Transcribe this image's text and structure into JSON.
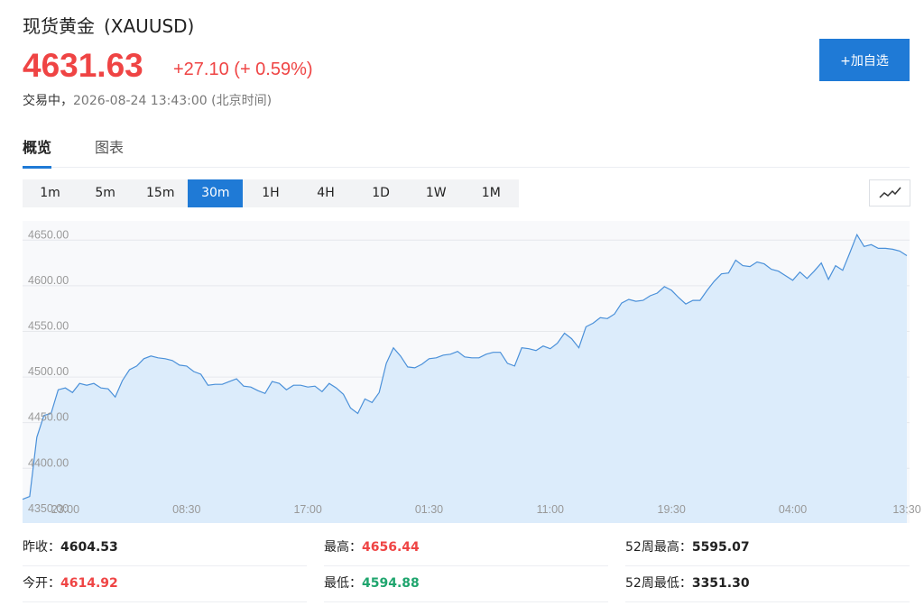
{
  "header": {
    "title": "现货黄金",
    "symbol": "(XAUUSD)",
    "price": "4631.63",
    "change": "+27.10 (+ 0.59%)",
    "status": "交易中，",
    "time": "2026-08-24 13:43:00",
    "timezone": "(北京时间)",
    "button": "+加自选"
  },
  "tabs": {
    "items": [
      "概览",
      "图表"
    ],
    "active": 0
  },
  "timeframes": {
    "items": [
      "1m",
      "5m",
      "15m",
      "30m",
      "1H",
      "4H",
      "1D",
      "1W",
      "1M"
    ],
    "active": 3
  },
  "chart_data": {
    "type": "area",
    "color": "#4a90d9",
    "fill": "#dcecfb",
    "grid": true,
    "categories": [
      null,
      null,
      null,
      null,
      null,
      null,
      "23:00",
      null,
      null,
      null,
      null,
      null,
      null,
      null,
      null,
      null,
      null,
      null,
      null,
      null,
      null,
      null,
      null,
      "08:30",
      null,
      null,
      null,
      null,
      null,
      null,
      null,
      null,
      null,
      null,
      null,
      null,
      null,
      null,
      null,
      null,
      "17:00",
      null,
      null,
      null,
      null,
      null,
      null,
      null,
      null,
      null,
      null,
      null,
      null,
      null,
      null,
      null,
      null,
      "01:30",
      null,
      null,
      null,
      null,
      null,
      null,
      null,
      null,
      null,
      null,
      null,
      null,
      null,
      null,
      null,
      null,
      "11:00",
      null,
      null,
      null,
      null,
      null,
      null,
      null,
      null,
      null,
      null,
      null,
      null,
      null,
      null,
      null,
      null,
      "19:30",
      null,
      null,
      null,
      null,
      null,
      null,
      null,
      null,
      null,
      null,
      null,
      null,
      null,
      null,
      null,
      null,
      "04:00",
      null,
      null,
      null,
      null,
      null,
      null,
      null,
      null,
      null,
      null,
      null,
      null,
      null,
      null,
      null,
      "13:30"
    ],
    "values": [
      4366,
      4369,
      4434,
      4458,
      4460,
      4486,
      4488,
      4483,
      4493,
      4491,
      4493,
      4488,
      4487,
      4478,
      4496,
      4508,
      4512,
      4520,
      4523,
      4521,
      4520,
      4518,
      4513,
      4512,
      4506,
      4503,
      4491,
      4492,
      4492,
      4495,
      4498,
      4490,
      4489,
      4485,
      4482,
      4495,
      4493,
      4486,
      4491,
      4491,
      4489,
      4490,
      4484,
      4493,
      4488,
      4481,
      4466,
      4460,
      4476,
      4472,
      4483,
      4515,
      4532,
      4523,
      4511,
      4510,
      4514,
      4520,
      4521,
      4524,
      4525,
      4528,
      4522,
      4521,
      4521,
      4525,
      4527,
      4527,
      4515,
      4512,
      4532,
      4531,
      4529,
      4534,
      4531,
      4537,
      4548,
      4542,
      4532,
      4555,
      4559,
      4565,
      4564,
      4569,
      4581,
      4585,
      4583,
      4584,
      4589,
      4592,
      4599,
      4595,
      4587,
      4580,
      4584,
      4584,
      4595,
      4605,
      4613,
      4614,
      4628,
      4622,
      4621,
      4626,
      4624,
      4618,
      4616,
      4611,
      4606,
      4615,
      4608,
      4616,
      4625,
      4607,
      4622,
      4617,
      4636,
      4656,
      4643,
      4645,
      4641,
      4641,
      4640,
      4638,
      4633
    ],
    "ylim": [
      4340,
      4671
    ],
    "yticks": [
      {
        "value": 4350,
        "label": "4350.00"
      },
      {
        "value": 4400,
        "label": "4400.00"
      },
      {
        "value": 4450,
        "label": "4450.00"
      },
      {
        "value": 4500,
        "label": "4500.00"
      },
      {
        "value": 4550,
        "label": "4550.00"
      },
      {
        "value": 4600,
        "label": "4600.00"
      },
      {
        "value": 4650,
        "label": "4650.00"
      }
    ]
  },
  "stats": [
    [
      {
        "label": "昨收：",
        "value": "4604.53",
        "tone": "plain"
      },
      {
        "label": "最高：",
        "value": "4656.44",
        "tone": "up"
      },
      {
        "label": "52周最高：",
        "value": "5595.07",
        "tone": "plain"
      }
    ],
    [
      {
        "label": "今开：",
        "value": "4614.92",
        "tone": "up"
      },
      {
        "label": "最低：",
        "value": "4594.88",
        "tone": "down"
      },
      {
        "label": "52周最低：",
        "value": "3351.30",
        "tone": "plain"
      }
    ]
  ]
}
